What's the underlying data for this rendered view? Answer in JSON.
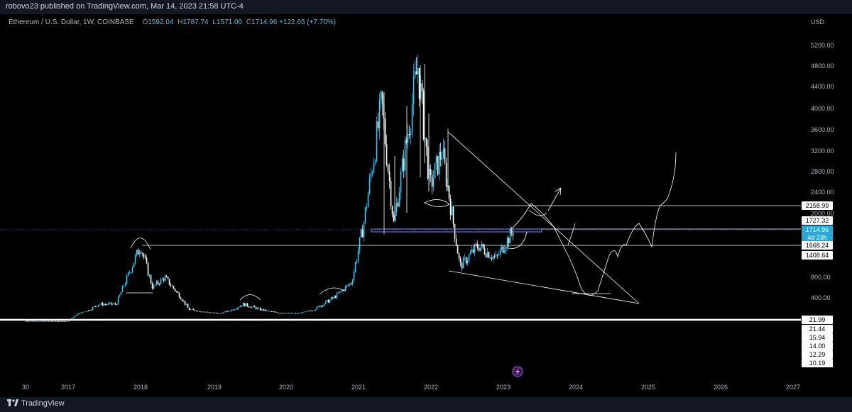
{
  "header": {
    "publisher": "robovo23 published on TradingView.com, Mar 14, 2023 21:58 UTC-4"
  },
  "legend": {
    "symbol": "Ethereum / U.S. Dollar, 1W, COINBASE",
    "open_label": "O",
    "open": "1592.04",
    "high_label": "H",
    "high": "1787.74",
    "low_label": "L",
    "low": "1571.00",
    "close_label": "C",
    "close": "1714.96",
    "change": "+122.65 (+7.70%)"
  },
  "footer": {
    "brand": "TradingView"
  },
  "colors": {
    "background": "#000000",
    "candle_up": "#4fc3e8",
    "candle_down": "#ffffff",
    "line_white": "#ffffff",
    "line_blue": "#7b8cff",
    "last_price_label": "#26a8d8",
    "crosshair_dot": "#2962ff"
  },
  "chart_data": {
    "type": "line",
    "title": "Ethereum / U.S. Dollar, 1W, COINBASE",
    "currency": "USD",
    "xlabel": "",
    "ylabel": "",
    "x_tick_labels": [
      "30",
      "2017",
      "2018",
      "2019",
      "2020",
      "2021",
      "2022",
      "2023",
      "2024",
      "2025",
      "2026",
      "2027"
    ],
    "y_tick_labels": [
      "5200.00",
      "4800.00",
      "4400.00",
      "4000.00",
      "3600.00",
      "3200.00",
      "2800.00",
      "2400.00",
      "2000.00",
      "800.00",
      "400.00"
    ],
    "series": [
      {
        "name": "",
        "x": [
          "2016-06",
          "2017-01",
          "2017-06",
          "2017-09",
          "2018-01",
          "2018-03",
          "2018-05",
          "2018-09",
          "2019-02",
          "2019-06",
          "2019-12",
          "2020-03",
          "2020-06",
          "2020-09",
          "2020-12",
          "2021-02",
          "2021-05",
          "2021-07",
          "2021-11",
          "2022-01",
          "2022-03",
          "2022-06",
          "2022-09",
          "2022-12",
          "2023-03"
        ],
        "y": [
          12,
          10,
          300,
          300,
          1400,
          600,
          800,
          220,
          110,
          300,
          130,
          110,
          230,
          400,
          700,
          1800,
          4100,
          1800,
          4800,
          2500,
          3200,
          1000,
          1400,
          1150,
          1715
        ]
      }
    ],
    "horizontal_levels": [
      "2158.99",
      "1727.32",
      "1668.24",
      "1408.64",
      "21.99"
    ],
    "price_labels": [
      "2158.99",
      "1727.32",
      "1714.96",
      "1668.24",
      "1408.64",
      "21.99",
      "21.44",
      "15.94",
      "14.00",
      "12.29",
      "10.19"
    ],
    "last_price": "1714.96",
    "countdown": "4d 23h",
    "ylim": [
      0,
      5400
    ]
  }
}
